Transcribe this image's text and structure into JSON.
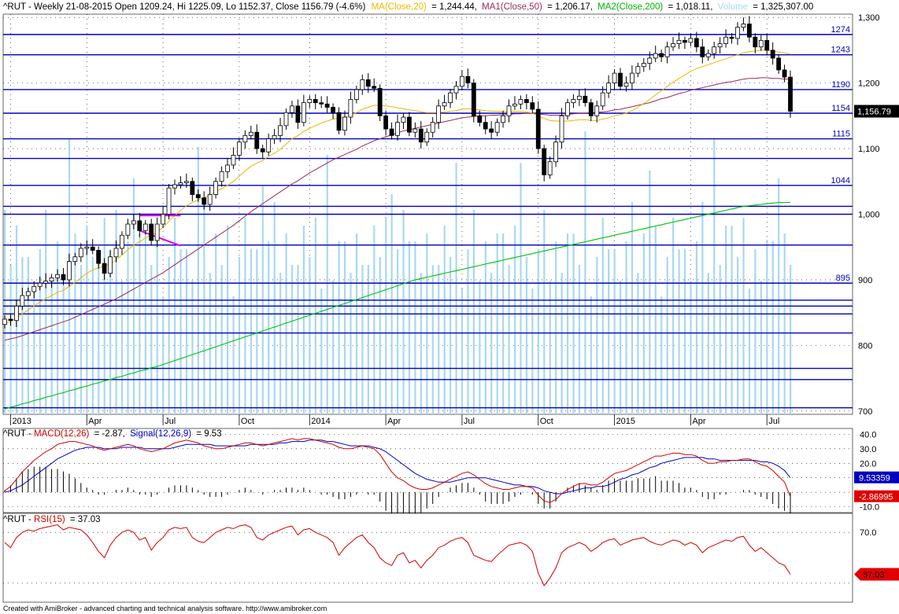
{
  "header": {
    "symbol_prefix": "^RUT - Weekly 21-08-2015 Open 1209.24, Hi 1225.09, Lo 1152.37, Close 1156.79 (-4.6%)",
    "ma20_label": "MA(Close,20)",
    "ma20_value": "= 1,244.44,",
    "ma50_label": "MA1(Close,50)",
    "ma50_value": "= 1,206.17,",
    "ma200_label": "MA2(Close,200)",
    "ma200_value": "= 1,018.11,",
    "volume_label": "Volume",
    "volume_value": "= 1,325,307.00"
  },
  "macd_header": {
    "prefix": "^RUT - ",
    "macd_label": "MACD(12,26)",
    "macd_value": "= -2.87,",
    "signal_label": "Signal(12,26,9)",
    "signal_value": "= 9.53"
  },
  "rsi_header": {
    "prefix": "^RUT - ",
    "rsi_label": "RSI(15)",
    "rsi_value": "= 37.03"
  },
  "footer_text": "Created with AmiBroker - advanced charting and technical analysis software. http://www.amibroker.com",
  "colors": {
    "ma20": "#e8b800",
    "ma50": "#9b2a5a",
    "ma200": "#00c000",
    "volume": "#a8d8f0",
    "level_line": "#0000c0",
    "macd": "#d00000",
    "signal": "#0000c0",
    "rsi": "#d00000",
    "triangle": "#e000e0"
  },
  "chart_data": [
    {
      "type": "candlestick",
      "panel": "price",
      "ylim": [
        695,
        1305
      ],
      "y_ticks": [
        "1,300",
        "1,200",
        "1,100",
        "1,000",
        "900",
        "800",
        "700"
      ],
      "x_labels": [
        "2013",
        "Apr",
        "Jul",
        "Oct",
        "2014",
        "Apr",
        "Jul",
        "Oct",
        "2015",
        "Apr",
        "Jul"
      ],
      "last_price_label": "1,156.79",
      "horizontal_levels": [
        {
          "value": 1274,
          "label": "1274"
        },
        {
          "value": 1243,
          "label": "1243"
        },
        {
          "value": 1190,
          "label": "1190"
        },
        {
          "value": 1154,
          "label": "1154"
        },
        {
          "value": 1115,
          "label": "1115"
        },
        {
          "value": 1085,
          "label": ""
        },
        {
          "value": 1044,
          "label": "1044"
        },
        {
          "value": 1012,
          "label": ""
        },
        {
          "value": 1000,
          "label": ""
        },
        {
          "value": 953,
          "label": ""
        },
        {
          "value": 895,
          "label": "895"
        },
        {
          "value": 869,
          "label": ""
        },
        {
          "value": 860,
          "label": ""
        },
        {
          "value": 848,
          "label": ""
        },
        {
          "value": 819,
          "label": ""
        },
        {
          "value": 765,
          "label": ""
        },
        {
          "value": 748,
          "label": ""
        },
        {
          "value": 705,
          "label": ""
        }
      ],
      "close": [
        840,
        838,
        860,
        876,
        882,
        890,
        895,
        898,
        903,
        908,
        900,
        928,
        935,
        948,
        950,
        945,
        925,
        910,
        935,
        948,
        968,
        985,
        990,
        975,
        985,
        960,
        985,
        1000,
        1040,
        1045,
        1048,
        1050,
        1030,
        1025,
        1015,
        1030,
        1050,
        1065,
        1075,
        1090,
        1110,
        1120,
        1125,
        1100,
        1095,
        1115,
        1120,
        1135,
        1155,
        1165,
        1140,
        1170,
        1175,
        1170,
        1168,
        1163,
        1155,
        1128,
        1148,
        1175,
        1190,
        1205,
        1195,
        1192,
        1150,
        1130,
        1120,
        1140,
        1148,
        1125,
        1130,
        1110,
        1125,
        1140,
        1165,
        1170,
        1185,
        1195,
        1210,
        1200,
        1150,
        1140,
        1130,
        1125,
        1140,
        1150,
        1165,
        1168,
        1175,
        1170,
        1160,
        1100,
        1060,
        1080,
        1110,
        1150,
        1170,
        1175,
        1180,
        1170,
        1150,
        1165,
        1185,
        1200,
        1215,
        1195,
        1200,
        1215,
        1225,
        1230,
        1238,
        1245,
        1240,
        1255,
        1260,
        1265,
        1262,
        1268,
        1255,
        1240,
        1245,
        1255,
        1260,
        1270,
        1268,
        1285,
        1290,
        1270,
        1255,
        1265,
        1250,
        1238,
        1220,
        1209,
        1157
      ],
      "ma20": [
        834,
        836,
        842,
        848,
        854,
        860,
        866,
        871,
        876,
        881,
        884,
        890,
        896,
        903,
        910,
        915,
        918,
        921,
        924,
        930,
        938,
        946,
        953,
        958,
        964,
        968,
        973,
        980,
        989,
        998,
        1006,
        1013,
        1018,
        1022,
        1025,
        1029,
        1034,
        1039,
        1044,
        1050,
        1058,
        1066,
        1073,
        1078,
        1082,
        1088,
        1093,
        1099,
        1107,
        1115,
        1120,
        1126,
        1131,
        1135,
        1139,
        1142,
        1145,
        1146,
        1148,
        1151,
        1155,
        1160,
        1163,
        1166,
        1166,
        1165,
        1164,
        1162,
        1161,
        1159,
        1158,
        1156,
        1155,
        1155,
        1155,
        1156,
        1157,
        1158,
        1160,
        1161,
        1160,
        1159,
        1158,
        1157,
        1157,
        1157,
        1157,
        1157,
        1157,
        1156,
        1154,
        1150,
        1146,
        1143,
        1142,
        1142,
        1142,
        1143,
        1144,
        1144,
        1143,
        1143,
        1145,
        1147,
        1150,
        1152,
        1154,
        1158,
        1163,
        1169,
        1175,
        1182,
        1188,
        1195,
        1201,
        1207,
        1212,
        1218,
        1222,
        1225,
        1228,
        1231,
        1234,
        1237,
        1240,
        1243,
        1246,
        1248,
        1249,
        1250,
        1250,
        1249,
        1247,
        1246,
        1244
      ],
      "ma50": [
        808,
        810,
        812,
        815,
        818,
        821,
        824,
        827,
        830,
        833,
        836,
        839,
        843,
        847,
        851,
        855,
        859,
        863,
        867,
        871,
        876,
        881,
        886,
        891,
        896,
        901,
        906,
        911,
        917,
        923,
        929,
        935,
        941,
        947,
        953,
        959,
        965,
        971,
        977,
        983,
        990,
        997,
        1004,
        1010,
        1016,
        1022,
        1028,
        1034,
        1040,
        1046,
        1051,
        1057,
        1063,
        1068,
        1073,
        1078,
        1083,
        1087,
        1091,
        1095,
        1099,
        1104,
        1108,
        1112,
        1115,
        1118,
        1121,
        1124,
        1127,
        1129,
        1131,
        1133,
        1135,
        1137,
        1139,
        1141,
        1143,
        1145,
        1147,
        1148,
        1149,
        1150,
        1150,
        1151,
        1151,
        1152,
        1152,
        1153,
        1153,
        1154,
        1154,
        1153,
        1152,
        1151,
        1151,
        1151,
        1152,
        1153,
        1154,
        1154,
        1155,
        1155,
        1156,
        1157,
        1159,
        1160,
        1162,
        1164,
        1166,
        1168,
        1170,
        1173,
        1176,
        1178,
        1181,
        1184,
        1186,
        1189,
        1191,
        1193,
        1195,
        1197,
        1199,
        1201,
        1202,
        1204,
        1206,
        1207,
        1207,
        1208,
        1208,
        1207,
        1207,
        1206,
        1206
      ],
      "ma200": [
        703,
        706,
        708,
        711,
        713,
        716,
        718,
        721,
        723,
        726,
        728,
        731,
        733,
        736,
        738,
        741,
        743,
        746,
        748,
        751,
        753,
        756,
        758,
        761,
        763,
        766,
        768,
        771,
        774,
        777,
        780,
        783,
        786,
        789,
        792,
        795,
        798,
        801,
        804,
        807,
        810,
        813,
        816,
        819,
        822,
        825,
        828,
        831,
        834,
        837,
        840,
        843,
        846,
        849,
        852,
        855,
        858,
        861,
        864,
        867,
        870,
        873,
        876,
        879,
        882,
        885,
        888,
        891,
        894,
        897,
        900,
        902,
        904,
        906,
        908,
        910,
        912,
        914,
        916,
        918,
        920,
        922,
        924,
        926,
        928,
        930,
        932,
        934,
        936,
        938,
        940,
        942,
        944,
        946,
        948,
        950,
        952,
        954,
        956,
        958,
        960,
        962,
        964,
        966,
        968,
        970,
        972,
        974,
        976,
        978,
        980,
        982,
        984,
        986,
        988,
        990,
        992,
        994,
        996,
        998,
        1000,
        1002,
        1004,
        1006,
        1008,
        1010,
        1012,
        1013,
        1014,
        1015,
        1016,
        1017,
        1018,
        1018,
        1018
      ]
    },
    {
      "type": "line",
      "panel": "macd",
      "y_ticks": [
        "40.0",
        "30.0",
        "20.0",
        "10.0",
        "-10.0"
      ],
      "ylim": [
        -14,
        44
      ],
      "series": [
        {
          "name": "MACD(12,26)",
          "last_label": "-2.86995",
          "values": [
            1,
            4,
            9,
            14,
            18,
            22,
            25,
            28,
            30,
            33,
            34,
            35,
            35,
            34,
            33,
            32,
            30,
            29,
            30,
            31,
            32,
            33,
            32,
            30,
            29,
            28,
            29,
            30,
            32,
            34,
            35,
            36,
            35,
            34,
            32,
            31,
            30,
            30,
            31,
            32,
            33,
            34,
            34,
            33,
            32,
            33,
            34,
            35,
            36,
            37,
            36,
            37,
            37,
            36,
            35,
            34,
            33,
            31,
            30,
            30,
            31,
            32,
            31,
            30,
            26,
            20,
            14,
            10,
            8,
            5,
            3,
            2,
            2,
            3,
            5,
            7,
            9,
            11,
            13,
            14,
            12,
            9,
            6,
            4,
            3,
            2,
            2,
            3,
            4,
            4,
            3,
            -2,
            -6,
            -7,
            -5,
            -1,
            2,
            4,
            6,
            6,
            5,
            5,
            7,
            10,
            13,
            14,
            15,
            17,
            19,
            21,
            23,
            25,
            25,
            26,
            27,
            27,
            26,
            26,
            25,
            22,
            20,
            20,
            21,
            21,
            22,
            22,
            23,
            23,
            21,
            19,
            18,
            15,
            11,
            7,
            -3
          ]
        },
        {
          "name": "Signal(12,26,9)",
          "last_label": "9.53359",
          "values": [
            0,
            1,
            3,
            5,
            8,
            11,
            14,
            17,
            20,
            23,
            25,
            27,
            29,
            30,
            31,
            31,
            31,
            30,
            30,
            30,
            31,
            31,
            31,
            31,
            30,
            30,
            30,
            30,
            30,
            31,
            32,
            33,
            33,
            33,
            33,
            33,
            32,
            32,
            32,
            32,
            32,
            32,
            33,
            33,
            33,
            33,
            33,
            34,
            34,
            35,
            35,
            35,
            36,
            36,
            36,
            35,
            35,
            34,
            33,
            32,
            32,
            32,
            32,
            31,
            30,
            28,
            25,
            22,
            19,
            16,
            13,
            11,
            9,
            8,
            7,
            7,
            7,
            8,
            9,
            10,
            10,
            10,
            10,
            9,
            8,
            7,
            6,
            5,
            5,
            4,
            4,
            3,
            1,
            0,
            -1,
            -1,
            0,
            1,
            2,
            3,
            3,
            4,
            4,
            5,
            7,
            9,
            10,
            12,
            13,
            15,
            17,
            18,
            20,
            21,
            22,
            23,
            24,
            24,
            24,
            24,
            23,
            23,
            22,
            22,
            22,
            22,
            22,
            22,
            22,
            21,
            21,
            20,
            18,
            15,
            10
          ]
        }
      ]
    },
    {
      "type": "line",
      "panel": "rsi",
      "y_ticks": [
        "70.0"
      ],
      "ylim": [
        15,
        85
      ],
      "series": [
        {
          "name": "RSI(15)",
          "last_label": "37.03",
          "values": [
            62,
            58,
            66,
            70,
            72,
            71,
            73,
            74,
            75,
            76,
            72,
            74,
            73,
            72,
            68,
            62,
            55,
            50,
            60,
            66,
            70,
            72,
            70,
            64,
            66,
            56,
            62,
            66,
            72,
            74,
            73,
            74,
            66,
            63,
            62,
            66,
            70,
            72,
            74,
            73,
            75,
            76,
            74,
            66,
            64,
            68,
            70,
            72,
            74,
            75,
            68,
            72,
            73,
            70,
            68,
            66,
            62,
            52,
            58,
            62,
            66,
            68,
            62,
            58,
            50,
            46,
            44,
            52,
            54,
            46,
            48,
            42,
            48,
            52,
            58,
            60,
            63,
            65,
            66,
            62,
            52,
            50,
            48,
            47,
            52,
            56,
            60,
            61,
            62,
            60,
            55,
            38,
            28,
            34,
            42,
            54,
            58,
            60,
            62,
            60,
            55,
            58,
            62,
            64,
            65,
            60,
            62,
            64,
            65,
            66,
            63,
            61,
            60,
            62,
            64,
            63,
            60,
            62,
            60,
            54,
            58,
            60,
            62,
            64,
            63,
            66,
            67,
            60,
            55,
            58,
            54,
            50,
            46,
            44,
            37
          ]
        }
      ]
    }
  ]
}
